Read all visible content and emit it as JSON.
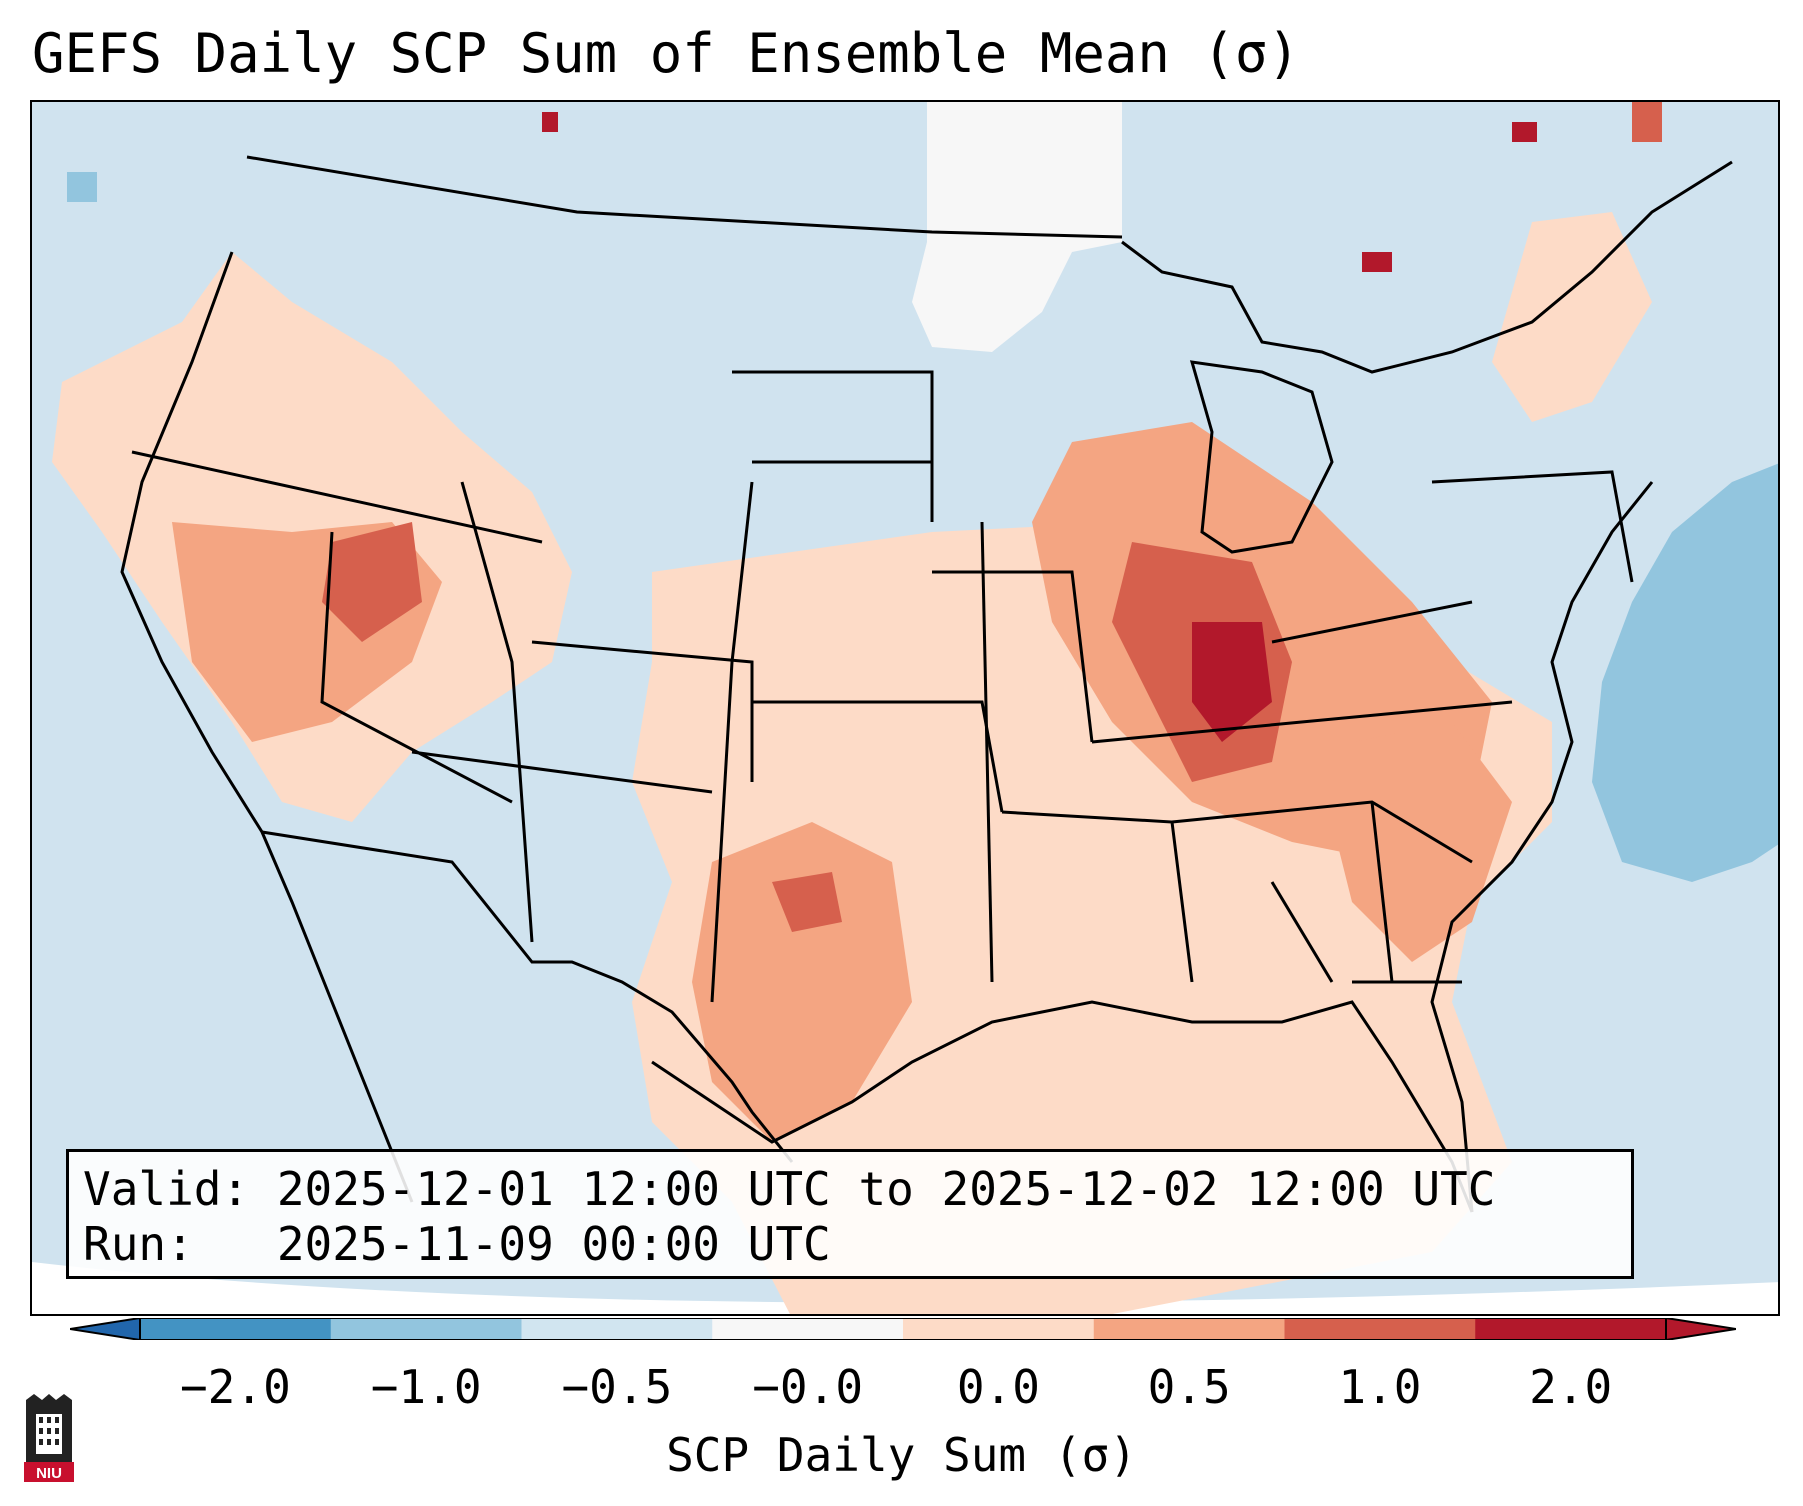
{
  "title": "GEFS Daily SCP Sum of Ensemble Mean (σ)",
  "info": {
    "valid_line": "Valid: 2025-12-01 12:00 UTC to 2025-12-02 12:00 UTC",
    "run_line": "Run:   2025-11-09 00:00 UTC"
  },
  "colorbar": {
    "label": "SCP Daily Sum (σ)",
    "ticks": [
      "−2.0",
      "−1.0",
      "−0.5",
      "−0.0",
      "0.0",
      "0.5",
      "1.0",
      "2.0"
    ],
    "colors": [
      "#4393c3",
      "#92c5de",
      "#d1e5f0",
      "#f7f7f7",
      "#fddbc7",
      "#f4a582",
      "#d6604d",
      "#b2182b"
    ],
    "under_color": "#2166ac",
    "over_color": "#b2182b"
  },
  "map": {
    "region": "Contiguous United States",
    "background_color": "#d0e3ef",
    "land_color": "#d0e3ef"
  },
  "logo": {
    "text": "NIU"
  }
}
